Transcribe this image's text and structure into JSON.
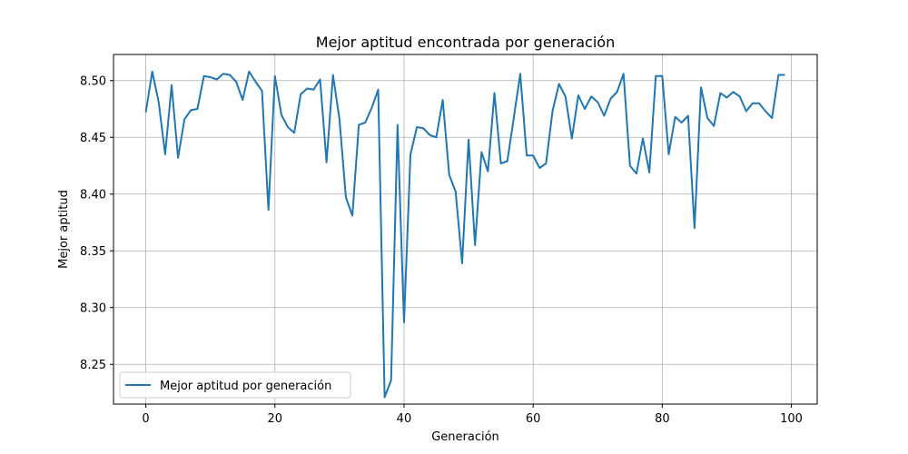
{
  "chart_data": {
    "type": "line",
    "title": "Mejor aptitud encontrada por generación",
    "xlabel": "Generación",
    "ylabel": "Mejor aptitud",
    "xlim": [
      -5,
      104
    ],
    "ylim": [
      8.215,
      8.523
    ],
    "xticks": [
      0,
      20,
      40,
      60,
      80,
      100
    ],
    "yticks": [
      8.25,
      8.3,
      8.35,
      8.4,
      8.45,
      8.5
    ],
    "grid": true,
    "legend_position": "lower-left",
    "series": [
      {
        "name": "Mejor aptitud por generación",
        "color": "#1f77b4",
        "x": [
          0,
          1,
          2,
          3,
          4,
          5,
          6,
          7,
          8,
          9,
          10,
          11,
          12,
          13,
          14,
          15,
          16,
          17,
          18,
          19,
          20,
          21,
          22,
          23,
          24,
          25,
          26,
          27,
          28,
          29,
          30,
          31,
          32,
          33,
          34,
          35,
          36,
          37,
          38,
          39,
          40,
          41,
          42,
          43,
          44,
          45,
          46,
          47,
          48,
          49,
          50,
          51,
          52,
          53,
          54,
          55,
          56,
          57,
          58,
          59,
          60,
          61,
          62,
          63,
          64,
          65,
          66,
          67,
          68,
          69,
          70,
          71,
          72,
          73,
          74,
          75,
          76,
          77,
          78,
          79,
          80,
          81,
          82,
          83,
          84,
          85,
          86,
          87,
          88,
          89,
          90,
          91,
          92,
          93,
          94,
          95,
          96,
          97,
          98,
          99
        ],
        "y": [
          8.472,
          8.508,
          8.481,
          8.435,
          8.496,
          8.432,
          8.466,
          8.474,
          8.475,
          8.504,
          8.503,
          8.501,
          8.506,
          8.505,
          8.499,
          8.483,
          8.508,
          8.499,
          8.491,
          8.386,
          8.504,
          8.47,
          8.459,
          8.454,
          8.488,
          8.493,
          8.492,
          8.501,
          8.428,
          8.505,
          8.466,
          8.397,
          8.381,
          8.461,
          8.463,
          8.476,
          8.492,
          8.221,
          8.236,
          8.461,
          8.287,
          8.435,
          8.459,
          8.458,
          8.452,
          8.45,
          8.483,
          8.417,
          8.402,
          8.339,
          8.448,
          8.355,
          8.437,
          8.42,
          8.489,
          8.427,
          8.429,
          8.467,
          8.506,
          8.434,
          8.434,
          8.423,
          8.427,
          8.473,
          8.497,
          8.486,
          8.449,
          8.487,
          8.475,
          8.486,
          8.481,
          8.469,
          8.484,
          8.49,
          8.506,
          8.425,
          8.418,
          8.449,
          8.419,
          8.504,
          8.504,
          8.435,
          8.468,
          8.463,
          8.469,
          8.37,
          8.494,
          8.467,
          8.46,
          8.489,
          8.485,
          8.49,
          8.486,
          8.473,
          8.48,
          8.48,
          8.473,
          8.467,
          8.505,
          8.505
        ]
      }
    ]
  }
}
